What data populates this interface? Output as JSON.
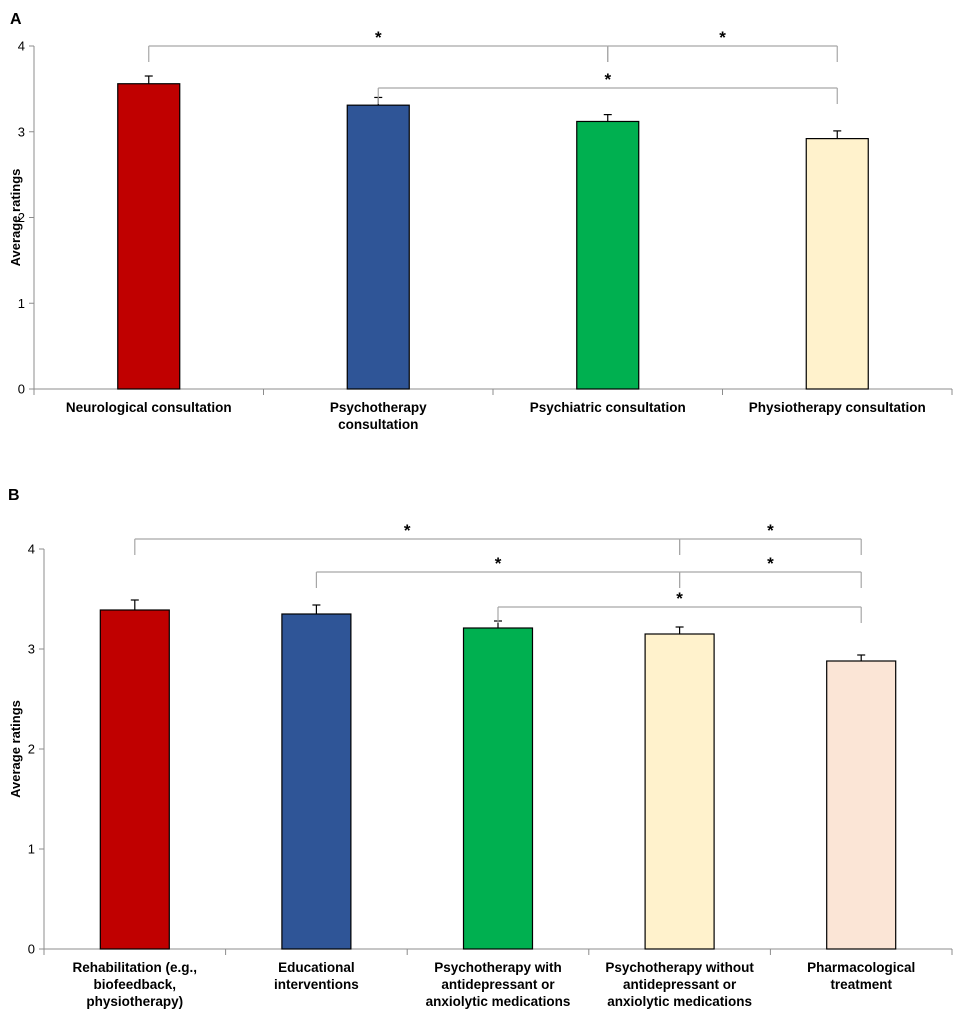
{
  "chart_data": [
    {
      "type": "bar",
      "panel": "A",
      "ylabel": "Average ratings",
      "xlabel": "",
      "ylim": [
        0,
        4
      ],
      "yticks": [
        "0",
        "1",
        "2",
        "3",
        "4"
      ],
      "grid": false,
      "categories": [
        [
          "Neurological consultation"
        ],
        [
          "Psychotherapy",
          "consultation"
        ],
        [
          "Psychiatric consultation"
        ],
        [
          "Physiotherapy consultation"
        ]
      ],
      "values": [
        3.56,
        3.31,
        3.12,
        2.92
      ],
      "errors": [
        0.09,
        0.09,
        0.08,
        0.09
      ],
      "colors": [
        "#c00000",
        "#2f5597",
        "#00b050",
        "#fff2cc"
      ],
      "significance": [
        {
          "from": 0,
          "to": 2,
          "label": "*",
          "level": 0
        },
        {
          "from": 2,
          "to": 3,
          "label": "*",
          "level": 0
        },
        {
          "from": 1,
          "to": 3,
          "label": "*",
          "level": 1
        }
      ]
    },
    {
      "type": "bar",
      "panel": "B",
      "ylabel": "Average ratings",
      "xlabel": "",
      "ylim": [
        0,
        4
      ],
      "yticks": [
        "0",
        "1",
        "2",
        "3",
        "4"
      ],
      "grid": false,
      "categories": [
        [
          "Rehabilitation (e.g.,",
          "biofeedback,",
          "physiotherapy)"
        ],
        [
          "Educational",
          "interventions"
        ],
        [
          "Psychotherapy with",
          "antidepressant or",
          "anxiolytic medications"
        ],
        [
          "Psychotherapy without",
          "antidepressant or",
          "anxiolytic medications"
        ],
        [
          "Pharmacological",
          "treatment"
        ]
      ],
      "values": [
        3.39,
        3.35,
        3.21,
        3.15,
        2.88
      ],
      "errors": [
        0.1,
        0.09,
        0.07,
        0.07,
        0.06
      ],
      "colors": [
        "#c00000",
        "#2f5597",
        "#00b050",
        "#fff2cc",
        "#fbe5d6"
      ],
      "significance": [
        {
          "from": 0,
          "to": 3,
          "label": "*",
          "level": 0
        },
        {
          "from": 3,
          "to": 4,
          "label": "*",
          "level": 0
        },
        {
          "from": 1,
          "to": 3,
          "label": "*",
          "level": 1
        },
        {
          "from": 3,
          "to": 4,
          "label": "*",
          "level": 1
        },
        {
          "from": 2,
          "to": 4,
          "label": "*",
          "level": 2
        }
      ]
    }
  ]
}
